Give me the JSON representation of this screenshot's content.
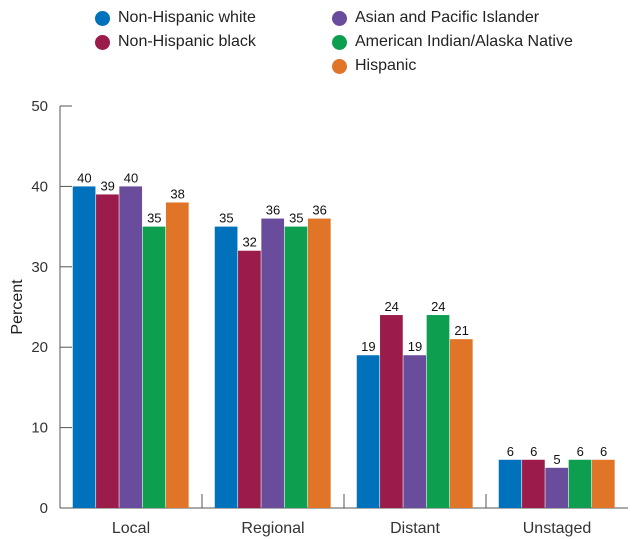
{
  "chart_data": {
    "type": "bar",
    "title": "",
    "xlabel": "",
    "ylabel": "Percent",
    "ylim": [
      0,
      50
    ],
    "yticks": [
      0,
      10,
      20,
      30,
      40,
      50
    ],
    "categories": [
      "Local",
      "Regional",
      "Distant",
      "Unstaged"
    ],
    "series": [
      {
        "name": "Non-Hispanic white",
        "color": "#0072BC",
        "values": [
          40,
          35,
          19,
          6
        ]
      },
      {
        "name": "Non-Hispanic black",
        "color": "#9B1B4A",
        "values": [
          39,
          32,
          24,
          6
        ]
      },
      {
        "name": "Asian and Pacific Islander",
        "color": "#6A4C9C",
        "values": [
          40,
          36,
          19,
          5
        ]
      },
      {
        "name": "American Indian/Alaska Native",
        "color": "#0E9E4F",
        "values": [
          35,
          35,
          24,
          6
        ]
      },
      {
        "name": "Hispanic",
        "color": "#E07427",
        "values": [
          38,
          36,
          21,
          6
        ]
      }
    ],
    "legend_position": "top",
    "grid": false
  }
}
